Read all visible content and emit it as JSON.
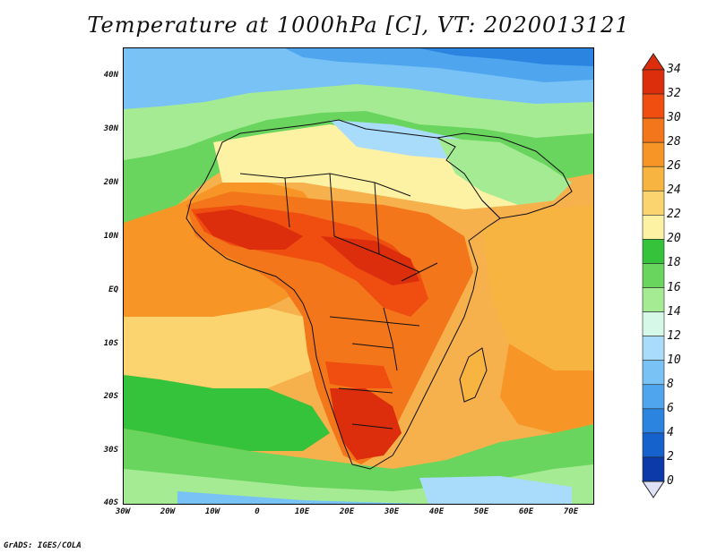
{
  "title": "Temperature at 1000hPa [C], VT: 2020013121",
  "credit": "GrADS: IGES/COLA",
  "lat_ticks": [
    "40N",
    "30N",
    "20N",
    "10N",
    "EQ",
    "10S",
    "20S",
    "30S",
    "40S"
  ],
  "lon_ticks": [
    "30W",
    "20W",
    "10W",
    "0",
    "10E",
    "20E",
    "30E",
    "40E",
    "50E",
    "60E",
    "70E"
  ],
  "colorbar": {
    "labels": [
      "34",
      "32",
      "30",
      "28",
      "26",
      "24",
      "22",
      "20",
      "18",
      "16",
      "14",
      "12",
      "10",
      "8",
      "6",
      "4",
      "2",
      "0"
    ],
    "colors": [
      "#dc2e0c",
      "#f04d10",
      "#f3761b",
      "#f79626",
      "#f7b441",
      "#fbd470",
      "#fdf2a4",
      "#36c33c",
      "#6ad55e",
      "#a5eb94",
      "#d6f8e8",
      "#a9dcfb",
      "#79c2f6",
      "#4fa5ee",
      "#2a84e0",
      "#1662cc",
      "#0c3aa8",
      "#0a1b7a"
    ]
  },
  "chart_data": {
    "type": "heatmap",
    "title": "Temperature at 1000hPa [C], VT: 2020013121",
    "variable": "Temperature at 1000hPa",
    "units": "C",
    "valid_time": "2020013121",
    "lon_range": [
      -30,
      75
    ],
    "lat_range": [
      -40,
      45
    ],
    "color_levels": [
      0,
      2,
      4,
      6,
      8,
      10,
      12,
      14,
      16,
      18,
      20,
      22,
      24,
      26,
      28,
      30,
      32,
      34
    ]
  }
}
